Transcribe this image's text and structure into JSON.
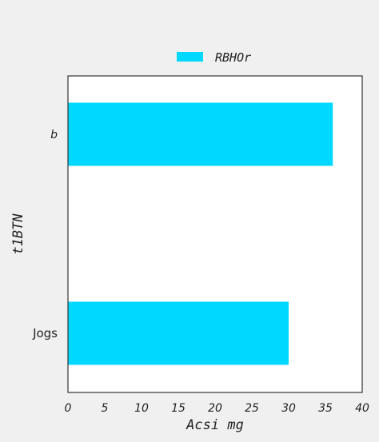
{
  "chart_data": {
    "type": "bar",
    "orientation": "horizontal",
    "title": "",
    "categories": [
      "b",
      "Jogs"
    ],
    "series": [
      {
        "name": "RBHOr",
        "values": [
          36,
          30
        ],
        "color": "#00d8ff"
      }
    ],
    "xlabel": "Acsi mg",
    "ylabel": "t1BTN",
    "xlim": [
      0,
      40
    ],
    "xticks": [
      0,
      5,
      10,
      15,
      20,
      25,
      30,
      35,
      40
    ],
    "grid": false,
    "legend_position": "top-center"
  },
  "colors": {
    "page_background": "#f0f0f0",
    "plot_background": "#ffffff",
    "axes_frame": "#333333",
    "text": "#222222"
  }
}
